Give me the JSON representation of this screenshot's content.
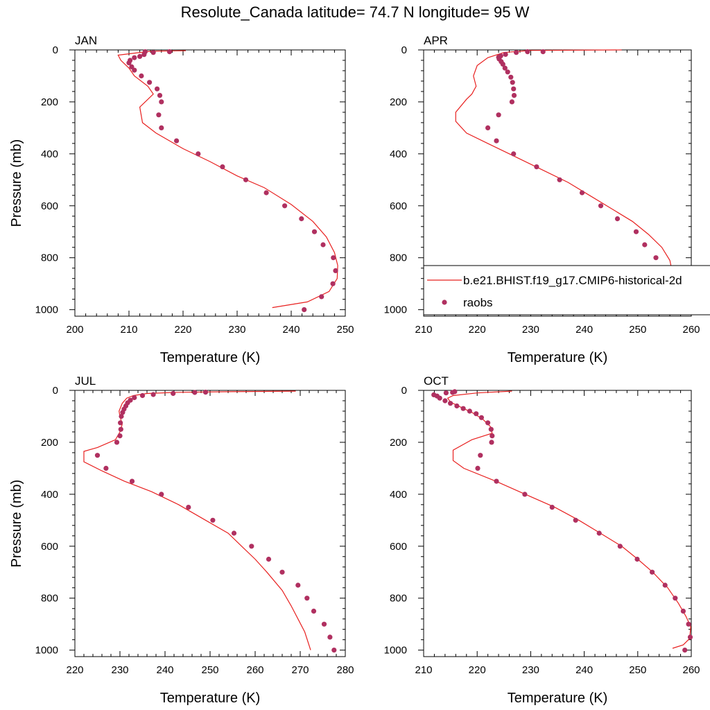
{
  "title": "Resolute_Canada  latitude= 74.7 N longitude= 95 W",
  "legend": {
    "model_label": "b.e21.BHIST.f19_g17.CMIP6-historical-2d",
    "obs_label": "raobs",
    "placement": "inside APR panel, lower right"
  },
  "colors": {
    "model": "#e8201f",
    "obs": "#b03060"
  },
  "chart_data": [
    {
      "type": "line",
      "panel": "JAN",
      "xlabel": "Temperature (K)",
      "ylabel": "Pressure (mb)",
      "xlim": [
        200,
        250
      ],
      "ylim": [
        1025,
        0
      ],
      "xticks": [
        200,
        210,
        220,
        230,
        240,
        250
      ],
      "yticks": [
        0,
        200,
        400,
        600,
        800,
        1000
      ],
      "series": [
        {
          "kind": "line",
          "role": "model",
          "points": [
            [
              220.5,
              3
            ],
            [
              214,
              5
            ],
            [
              208,
              20
            ],
            [
              208.5,
              40
            ],
            [
              210,
              70
            ],
            [
              211,
              100
            ],
            [
              213.5,
              140
            ],
            [
              214.5,
              170
            ],
            [
              212,
              220
            ],
            [
              212.5,
              280
            ],
            [
              215,
              320
            ],
            [
              220,
              380
            ],
            [
              225,
              430
            ],
            [
              230,
              485
            ],
            [
              235,
              530
            ],
            [
              240,
              595
            ],
            [
              244,
              660
            ],
            [
              246.5,
              720
            ],
            [
              248,
              780
            ],
            [
              248.6,
              830
            ],
            [
              248.5,
              880
            ],
            [
              247,
              930
            ],
            [
              243,
              970
            ],
            [
              236.5,
              992
            ]
          ]
        },
        {
          "kind": "scatter",
          "role": "obs",
          "points": [
            [
              217.5,
              7
            ],
            [
              214.5,
              10
            ],
            [
              213,
              7
            ],
            [
              212.8,
              18
            ],
            [
              212,
              25
            ],
            [
              211,
              30
            ],
            [
              210.2,
              40
            ],
            [
              210,
              50
            ],
            [
              210.5,
              65
            ],
            [
              211,
              78
            ],
            [
              212.3,
              100
            ],
            [
              213.8,
              125
            ],
            [
              215.2,
              150
            ],
            [
              215.7,
              175
            ],
            [
              216,
              200
            ],
            [
              215.5,
              250
            ],
            [
              216,
              300
            ],
            [
              218.8,
              350
            ],
            [
              222.8,
              400
            ],
            [
              227.3,
              450
            ],
            [
              231.6,
              500
            ],
            [
              235.4,
              550
            ],
            [
              238.8,
              600
            ],
            [
              241.9,
              650
            ],
            [
              244.3,
              700
            ],
            [
              245.9,
              750
            ],
            [
              247.8,
              800
            ],
            [
              248.2,
              850
            ],
            [
              247.7,
              900
            ],
            [
              245.6,
              950
            ],
            [
              242.4,
              1000
            ]
          ]
        }
      ]
    },
    {
      "type": "line",
      "panel": "APR",
      "xlabel": "Temperature (K)",
      "ylabel": "",
      "xlim": [
        210,
        260
      ],
      "ylim": [
        1025,
        0
      ],
      "xticks": [
        210,
        220,
        230,
        240,
        250,
        260
      ],
      "yticks": [
        0,
        200,
        400,
        600,
        800,
        1000
      ],
      "series": [
        {
          "kind": "line",
          "role": "model",
          "points": [
            [
              247,
              0
            ],
            [
              230,
              2
            ],
            [
              225,
              10
            ],
            [
              222,
              30
            ],
            [
              220,
              60
            ],
            [
              219.3,
              100
            ],
            [
              219.8,
              140
            ],
            [
              219,
              170
            ],
            [
              218,
              190
            ],
            [
              216,
              240
            ],
            [
              216,
              275
            ],
            [
              218,
              320
            ],
            [
              222,
              360
            ],
            [
              227,
              410
            ],
            [
              232,
              460
            ],
            [
              237,
              510
            ],
            [
              241,
              560
            ],
            [
              245,
              610
            ],
            [
              249,
              660
            ],
            [
              252,
              710
            ],
            [
              254.5,
              760
            ],
            [
              256,
              810
            ],
            [
              256.5,
              860
            ],
            [
              256.5,
              910
            ],
            [
              256,
              955
            ],
            [
              254,
              985
            ],
            [
              250,
              995
            ]
          ]
        },
        {
          "kind": "scatter",
          "role": "obs",
          "points": [
            [
              232.3,
              7
            ],
            [
              229.4,
              7
            ],
            [
              227.3,
              10
            ],
            [
              225.3,
              17
            ],
            [
              224.4,
              23
            ],
            [
              224,
              28
            ],
            [
              224.1,
              35
            ],
            [
              224.5,
              45
            ],
            [
              224.8,
              55
            ],
            [
              225.2,
              70
            ],
            [
              225.7,
              85
            ],
            [
              226.3,
              105
            ],
            [
              226.6,
              125
            ],
            [
              226.8,
              150
            ],
            [
              226.9,
              175
            ],
            [
              226.5,
              200
            ],
            [
              224,
              250
            ],
            [
              222,
              300
            ],
            [
              223.6,
              350
            ],
            [
              226.8,
              400
            ],
            [
              231.1,
              450
            ],
            [
              235.4,
              500
            ],
            [
              239.6,
              550
            ],
            [
              243.1,
              600
            ],
            [
              246.2,
              650
            ],
            [
              249.7,
              700
            ],
            [
              251.3,
              750
            ],
            [
              253.4,
              800
            ],
            [
              254.2,
              850
            ],
            [
              254.3,
              900
            ],
            [
              253.3,
              950
            ],
            [
              251,
              1000
            ]
          ]
        }
      ]
    },
    {
      "type": "line",
      "panel": "JUL",
      "xlabel": "Temperature (K)",
      "ylabel": "Pressure (mb)",
      "xlim": [
        220,
        280
      ],
      "ylim": [
        1025,
        0
      ],
      "xticks": [
        220,
        230,
        240,
        250,
        260,
        270,
        280
      ],
      "yticks": [
        0,
        200,
        400,
        600,
        800,
        1000
      ],
      "series": [
        {
          "kind": "line",
          "role": "model",
          "points": [
            [
              269,
              3
            ],
            [
              255,
              5
            ],
            [
              242,
              8
            ],
            [
              236,
              12
            ],
            [
              233,
              20
            ],
            [
              231.5,
              30
            ],
            [
              230.5,
              50
            ],
            [
              229.8,
              80
            ],
            [
              230,
              100
            ],
            [
              230.5,
              130
            ],
            [
              230,
              160
            ],
            [
              229,
              190
            ],
            [
              225,
              220
            ],
            [
              222,
              235
            ],
            [
              222,
              275
            ],
            [
              226,
              310
            ],
            [
              231,
              350
            ],
            [
              237,
              390
            ],
            [
              243,
              440
            ],
            [
              249,
              500
            ],
            [
              254,
              550
            ],
            [
              257,
              600
            ],
            [
              260,
              650
            ],
            [
              262.6,
              700
            ],
            [
              266,
              770
            ],
            [
              268,
              830
            ],
            [
              269.5,
              880
            ],
            [
              271,
              930
            ],
            [
              272.3,
              1000
            ]
          ]
        },
        {
          "kind": "scatter",
          "role": "obs",
          "points": [
            [
              249,
              7
            ],
            [
              246.6,
              8
            ],
            [
              241.8,
              12
            ],
            [
              237.4,
              16
            ],
            [
              235,
              20
            ],
            [
              233.2,
              28
            ],
            [
              232.3,
              38
            ],
            [
              231.7,
              48
            ],
            [
              231.3,
              60
            ],
            [
              230.9,
              72
            ],
            [
              230.6,
              85
            ],
            [
              230.3,
              100
            ],
            [
              230.1,
              125
            ],
            [
              230.2,
              150
            ],
            [
              230,
              175
            ],
            [
              229.3,
              200
            ],
            [
              225,
              250
            ],
            [
              226.9,
              300
            ],
            [
              232.7,
              350
            ],
            [
              239.2,
              400
            ],
            [
              245.2,
              450
            ],
            [
              250.6,
              500
            ],
            [
              255.3,
              550
            ],
            [
              259.2,
              600
            ],
            [
              263,
              650
            ],
            [
              266,
              700
            ],
            [
              269.5,
              750
            ],
            [
              271.5,
              800
            ],
            [
              273,
              850
            ],
            [
              275.3,
              900
            ],
            [
              276.6,
              950
            ],
            [
              277.5,
              1000
            ]
          ]
        }
      ]
    },
    {
      "type": "line",
      "panel": "OCT",
      "xlabel": "Temperature (K)",
      "ylabel": "",
      "xlim": [
        210,
        260
      ],
      "ylim": [
        1025,
        0
      ],
      "xticks": [
        210,
        220,
        230,
        240,
        250,
        260
      ],
      "yticks": [
        0,
        200,
        400,
        600,
        800,
        1000
      ],
      "series": [
        {
          "kind": "line",
          "role": "model",
          "points": [
            [
              226.5,
              3
            ],
            [
              220,
              10
            ],
            [
              215.5,
              20
            ],
            [
              214.5,
              30
            ],
            [
              215,
              45
            ],
            [
              217,
              65
            ],
            [
              219,
              85
            ],
            [
              221,
              110
            ],
            [
              222.5,
              140
            ],
            [
              222.8,
              165
            ],
            [
              219,
              190
            ],
            [
              215.5,
              230
            ],
            [
              215.5,
              270
            ],
            [
              217.5,
              300
            ],
            [
              223.5,
              350
            ],
            [
              229,
              400
            ],
            [
              234.5,
              450
            ],
            [
              239,
              500
            ],
            [
              243,
              550
            ],
            [
              247,
              600
            ],
            [
              250,
              650
            ],
            [
              252.8,
              700
            ],
            [
              255.6,
              760
            ],
            [
              257.6,
              820
            ],
            [
              259,
              870
            ],
            [
              259.9,
              910
            ],
            [
              259.7,
              955
            ],
            [
              258.5,
              980
            ],
            [
              256.5,
              993
            ]
          ]
        },
        {
          "kind": "scatter",
          "role": "obs",
          "points": [
            [
              215.8,
              5
            ],
            [
              215.4,
              8
            ],
            [
              214.2,
              10
            ],
            [
              211.9,
              17
            ],
            [
              212.5,
              22
            ],
            [
              213,
              30
            ],
            [
              214,
              40
            ],
            [
              215,
              50
            ],
            [
              216.2,
              60
            ],
            [
              217.4,
              70
            ],
            [
              218.6,
              80
            ],
            [
              219.8,
              90
            ],
            [
              220.8,
              105
            ],
            [
              222,
              125
            ],
            [
              222.6,
              150
            ],
            [
              222.8,
              175
            ],
            [
              222.7,
              200
            ],
            [
              220.6,
              250
            ],
            [
              220.1,
              300
            ],
            [
              223.6,
              350
            ],
            [
              228.9,
              400
            ],
            [
              234,
              450
            ],
            [
              238.4,
              500
            ],
            [
              242.8,
              550
            ],
            [
              246.7,
              600
            ],
            [
              249.9,
              650
            ],
            [
              252.7,
              700
            ],
            [
              255.1,
              750
            ],
            [
              257,
              800
            ],
            [
              258.5,
              850
            ],
            [
              259.5,
              900
            ],
            [
              259.8,
              950
            ],
            [
              258.8,
              1000
            ]
          ]
        }
      ]
    }
  ]
}
